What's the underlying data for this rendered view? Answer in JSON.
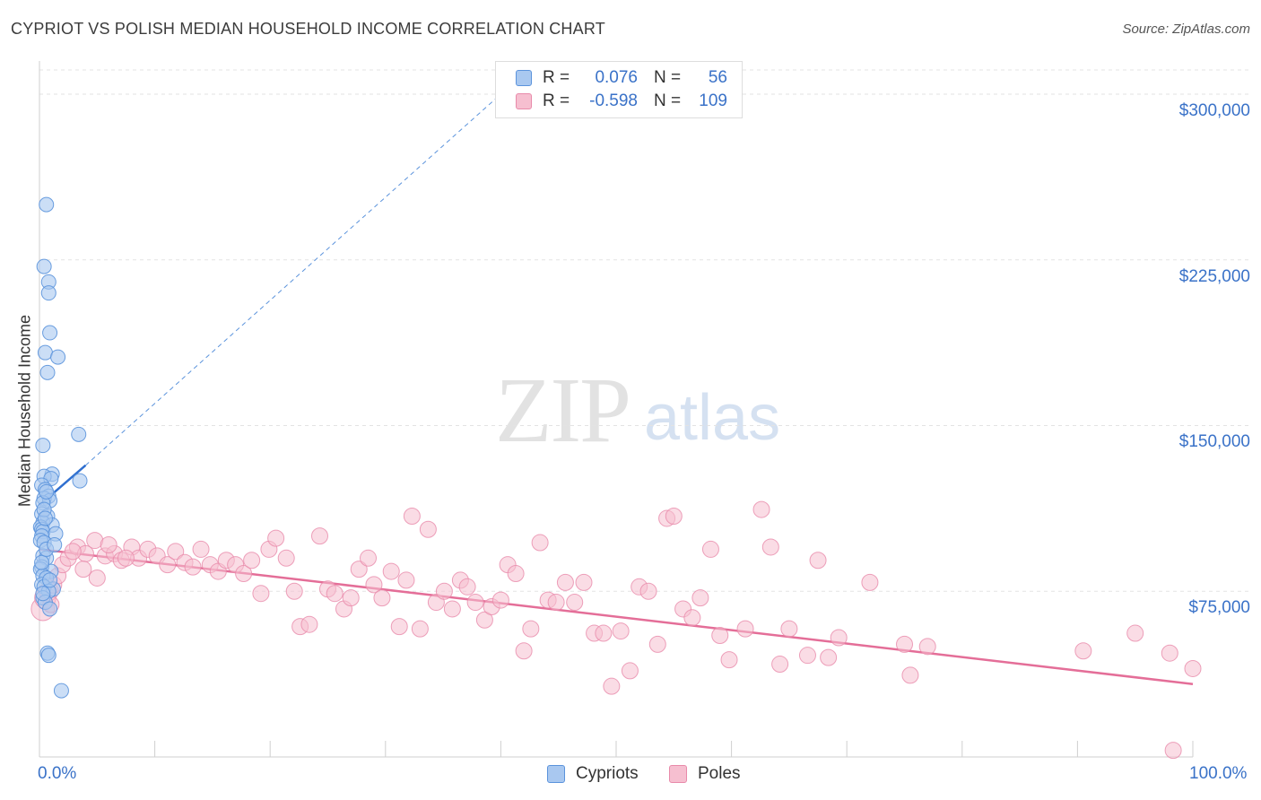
{
  "header": {
    "title": "CYPRIOT VS POLISH MEDIAN HOUSEHOLD INCOME CORRELATION CHART",
    "source": "Source: ZipAtlas.com"
  },
  "watermark": {
    "zip": "ZIP",
    "atlas": "atlas"
  },
  "legend": {
    "rows": [
      {
        "r_label": "R =",
        "r_value": "0.076",
        "n_label": "N =",
        "n_value": "56"
      },
      {
        "r_label": "R =",
        "r_value": "-0.598",
        "n_label": "N =",
        "n_value": "109"
      }
    ]
  },
  "bottom_legend": {
    "cypriots": "Cypriots",
    "poles": "Poles"
  },
  "colors": {
    "cypriots_fill": "#a9c8f0",
    "cypriots_stroke": "#5b93dc",
    "cypriots_line": "#2f6fd0",
    "poles_fill": "#f6bfd0",
    "poles_stroke": "#e88aaa",
    "poles_line": "#e46e98",
    "axis_text": "#3a72c8",
    "grid": "#e3e3e3"
  },
  "chart_data": {
    "type": "scatter",
    "title": "CYPRIOT VS POLISH MEDIAN HOUSEHOLD INCOME CORRELATION CHART",
    "xlabel": "",
    "ylabel": "Median Household Income",
    "xlim": [
      0,
      100
    ],
    "ylim": [
      0,
      315000
    ],
    "x_tick_labels": [
      "0.0%",
      "100.0%"
    ],
    "y_ticks": [
      75000,
      150000,
      225000,
      300000
    ],
    "y_tick_labels": [
      "$75,000",
      "$150,000",
      "$225,000",
      "$300,000"
    ],
    "grid": true,
    "legend_position": "top-center",
    "series": [
      {
        "name": "Cypriots",
        "r": 0.076,
        "n": 56,
        "trend": {
          "x": [
            0,
            4
          ],
          "y": [
            114000,
            132000
          ],
          "extended_to": [
            40,
            300000
          ]
        },
        "points": [
          [
            0.6,
            250000
          ],
          [
            0.4,
            222000
          ],
          [
            0.8,
            215000
          ],
          [
            0.8,
            210000
          ],
          [
            0.9,
            192000
          ],
          [
            0.5,
            183000
          ],
          [
            1.6,
            181000
          ],
          [
            0.7,
            174000
          ],
          [
            3.4,
            146000
          ],
          [
            0.3,
            141000
          ],
          [
            1.1,
            128000
          ],
          [
            0.4,
            127000
          ],
          [
            1.0,
            126000
          ],
          [
            3.5,
            125000
          ],
          [
            0.2,
            123000
          ],
          [
            0.5,
            121000
          ],
          [
            0.8,
            118000
          ],
          [
            0.4,
            117000
          ],
          [
            0.9,
            116000
          ],
          [
            0.3,
            115000
          ],
          [
            0.2,
            110000
          ],
          [
            0.7,
            109000
          ],
          [
            0.3,
            106000
          ],
          [
            1.1,
            105000
          ],
          [
            0.1,
            104000
          ],
          [
            0.2,
            103000
          ],
          [
            0.3,
            102000
          ],
          [
            1.4,
            101000
          ],
          [
            0.2,
            100000
          ],
          [
            0.1,
            98000
          ],
          [
            0.4,
            97000
          ],
          [
            0.3,
            91000
          ],
          [
            0.6,
            90000
          ],
          [
            0.2,
            86000
          ],
          [
            0.1,
            85000
          ],
          [
            1.0,
            84000
          ],
          [
            0.3,
            82000
          ],
          [
            0.6,
            81000
          ],
          [
            0.2,
            78000
          ],
          [
            0.4,
            77000
          ],
          [
            1.2,
            76000
          ],
          [
            0.8,
            75000
          ],
          [
            0.3,
            72000
          ],
          [
            0.5,
            70000
          ],
          [
            0.9,
            67000
          ],
          [
            0.7,
            47000
          ],
          [
            0.8,
            46000
          ],
          [
            1.9,
            30000
          ],
          [
            0.2,
            88000
          ],
          [
            0.6,
            94000
          ],
          [
            0.4,
            112000
          ],
          [
            0.9,
            80000
          ],
          [
            0.3,
            74000
          ],
          [
            1.3,
            96000
          ],
          [
            0.5,
            108000
          ],
          [
            0.6,
            120000
          ]
        ]
      },
      {
        "name": "Poles",
        "r": -0.598,
        "n": 109,
        "trend": {
          "x": [
            0,
            100
          ],
          "y": [
            94000,
            33000
          ]
        },
        "points": [
          [
            0.3,
            67000
          ],
          [
            0.5,
            72000
          ],
          [
            0.8,
            75000
          ],
          [
            1.2,
            78000
          ],
          [
            1.6,
            82000
          ],
          [
            2.0,
            87000
          ],
          [
            2.5,
            90000
          ],
          [
            3.3,
            95000
          ],
          [
            4.0,
            92000
          ],
          [
            4.8,
            98000
          ],
          [
            5.7,
            91000
          ],
          [
            6.5,
            92000
          ],
          [
            7.1,
            89000
          ],
          [
            8.0,
            95000
          ],
          [
            8.6,
            90000
          ],
          [
            9.4,
            94000
          ],
          [
            10.2,
            91000
          ],
          [
            11.1,
            87000
          ],
          [
            11.8,
            93000
          ],
          [
            12.6,
            88000
          ],
          [
            13.3,
            86000
          ],
          [
            14.0,
            94000
          ],
          [
            14.8,
            87000
          ],
          [
            15.5,
            84000
          ],
          [
            16.2,
            89000
          ],
          [
            17.0,
            87000
          ],
          [
            17.7,
            83000
          ],
          [
            18.4,
            89000
          ],
          [
            19.2,
            74000
          ],
          [
            19.9,
            94000
          ],
          [
            20.5,
            99000
          ],
          [
            21.4,
            90000
          ],
          [
            22.1,
            75000
          ],
          [
            22.6,
            59000
          ],
          [
            23.4,
            60000
          ],
          [
            24.3,
            100000
          ],
          [
            25.0,
            76000
          ],
          [
            25.6,
            74000
          ],
          [
            26.4,
            67000
          ],
          [
            27.0,
            72000
          ],
          [
            27.7,
            85000
          ],
          [
            28.5,
            90000
          ],
          [
            29.0,
            78000
          ],
          [
            29.7,
            72000
          ],
          [
            30.5,
            84000
          ],
          [
            31.2,
            59000
          ],
          [
            31.8,
            80000
          ],
          [
            32.3,
            109000
          ],
          [
            33.0,
            58000
          ],
          [
            33.7,
            103000
          ],
          [
            34.4,
            70000
          ],
          [
            35.1,
            75000
          ],
          [
            35.8,
            67000
          ],
          [
            36.5,
            80000
          ],
          [
            37.1,
            77000
          ],
          [
            37.8,
            70000
          ],
          [
            38.6,
            62000
          ],
          [
            39.2,
            68000
          ],
          [
            40.0,
            71000
          ],
          [
            40.6,
            87000
          ],
          [
            41.3,
            83000
          ],
          [
            42.0,
            48000
          ],
          [
            42.6,
            58000
          ],
          [
            43.4,
            97000
          ],
          [
            44.1,
            71000
          ],
          [
            44.8,
            70000
          ],
          [
            45.6,
            79000
          ],
          [
            46.4,
            70000
          ],
          [
            47.2,
            79000
          ],
          [
            48.1,
            56000
          ],
          [
            48.9,
            56000
          ],
          [
            49.6,
            32000
          ],
          [
            50.4,
            57000
          ],
          [
            51.2,
            39000
          ],
          [
            52.0,
            77000
          ],
          [
            52.8,
            75000
          ],
          [
            53.6,
            51000
          ],
          [
            54.4,
            108000
          ],
          [
            55.0,
            109000
          ],
          [
            55.8,
            67000
          ],
          [
            56.6,
            63000
          ],
          [
            57.3,
            72000
          ],
          [
            58.2,
            94000
          ],
          [
            59.0,
            55000
          ],
          [
            59.8,
            44000
          ],
          [
            61.2,
            58000
          ],
          [
            62.6,
            112000
          ],
          [
            63.4,
            95000
          ],
          [
            64.2,
            42000
          ],
          [
            65.0,
            58000
          ],
          [
            66.6,
            46000
          ],
          [
            67.5,
            89000
          ],
          [
            68.4,
            45000
          ],
          [
            69.3,
            54000
          ],
          [
            72.0,
            79000
          ],
          [
            75.5,
            37000
          ],
          [
            77.0,
            50000
          ],
          [
            75.0,
            51000
          ],
          [
            90.5,
            48000
          ],
          [
            95.0,
            56000
          ],
          [
            98.0,
            47000
          ],
          [
            100.0,
            40000
          ],
          [
            98.3,
            3000
          ],
          [
            5.0,
            81000
          ],
          [
            3.8,
            85000
          ],
          [
            2.9,
            93000
          ],
          [
            1.0,
            69000
          ],
          [
            6.0,
            96000
          ],
          [
            7.5,
            90000
          ]
        ]
      }
    ]
  }
}
